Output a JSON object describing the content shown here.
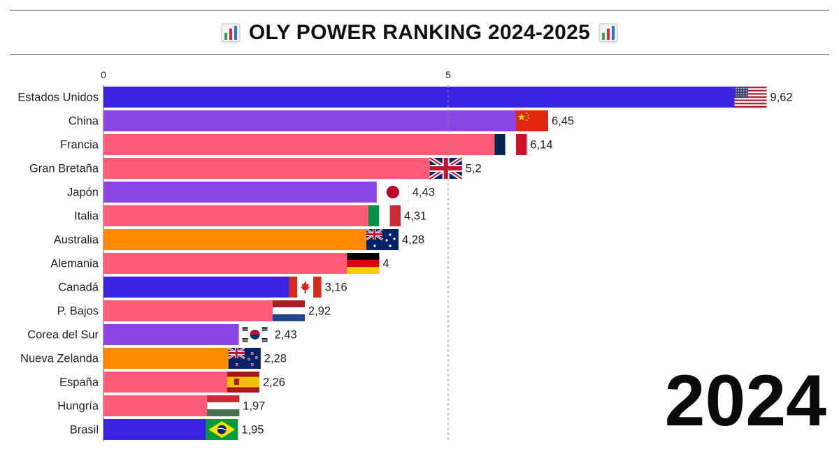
{
  "title": "OLY POWER RANKING 2024-2025",
  "title_icon": "bar-chart-emoji-icon",
  "year_label": "2024",
  "colors": {
    "blue": "#3a23e3",
    "purple": "#8a46e2",
    "pink": "#ff5a78",
    "orange": "#ff8a00",
    "text": "#222222",
    "grid": "#888888"
  },
  "chart_data": {
    "type": "bar",
    "orientation": "horizontal",
    "title": "OLY POWER RANKING 2024-2025",
    "xlabel": "",
    "ylabel": "",
    "xlim": [
      0,
      10
    ],
    "x_ticks": [
      0,
      5
    ],
    "grid": "dashed vertical at 5",
    "legend": "none",
    "categories": [
      "Estados Unidos",
      "China",
      "Francia",
      "Gran Bretaña",
      "Japón",
      "Italia",
      "Australia",
      "Alemania",
      "Canadá",
      "P. Bajos",
      "Corea del Sur",
      "Nueva Zelanda",
      "España",
      "Hungría",
      "Brasil"
    ],
    "values": [
      9.62,
      6.45,
      6.14,
      5.2,
      4.43,
      4.31,
      4.28,
      4,
      3.16,
      2.92,
      2.43,
      2.28,
      2.26,
      1.97,
      1.95
    ],
    "value_labels": [
      "9,62",
      "6,45",
      "6,14",
      "5,2",
      "4,43",
      "4,31",
      "4,28",
      "4",
      "3,16",
      "2,92",
      "2,43",
      "2,28",
      "2,26",
      "1,97",
      "1,95"
    ],
    "bar_colors": [
      "#3a23e3",
      "#8a46e2",
      "#ff5a78",
      "#ff5a78",
      "#8a46e2",
      "#ff5a78",
      "#ff8a00",
      "#ff5a78",
      "#3a23e3",
      "#ff5a78",
      "#8a46e2",
      "#ff8a00",
      "#ff5a78",
      "#ff5a78",
      "#3a23e3"
    ],
    "flags": [
      "usa-flag-icon",
      "china-flag-icon",
      "france-flag-icon",
      "uk-flag-icon",
      "japan-flag-icon",
      "italy-flag-icon",
      "australia-flag-icon",
      "germany-flag-icon",
      "canada-flag-icon",
      "netherlands-flag-icon",
      "south-korea-flag-icon",
      "new-zealand-flag-icon",
      "spain-flag-icon",
      "hungary-flag-icon",
      "brazil-flag-icon"
    ],
    "annotations": [
      "2024"
    ]
  }
}
